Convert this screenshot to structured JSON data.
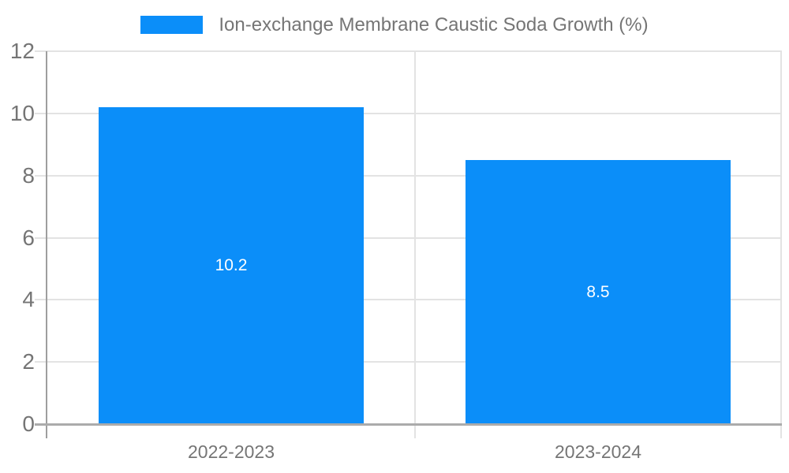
{
  "chart_data": {
    "type": "bar",
    "categories": [
      "2022-2023",
      "2023-2024"
    ],
    "series": [
      {
        "name": "Ion-exchange Membrane Caustic Soda Growth (%)",
        "values": [
          10.2,
          8.5
        ],
        "value_labels": [
          "10.2",
          "8.5"
        ]
      }
    ],
    "title": "",
    "xlabel": "",
    "ylabel": "",
    "ylim": [
      0,
      12
    ],
    "yticks": [
      0,
      2,
      4,
      6,
      8,
      10,
      12
    ],
    "grid": true,
    "legend_position": "top-center",
    "bar_color": "#0b8ef9",
    "bar_label_color": "#ffffff",
    "axis_text_color": "#757575",
    "gridline_color": "#e3e3e3",
    "axis_line_color": "#9e9e9e",
    "baseline_color": "#ababab",
    "background_color": "#ffffff"
  }
}
